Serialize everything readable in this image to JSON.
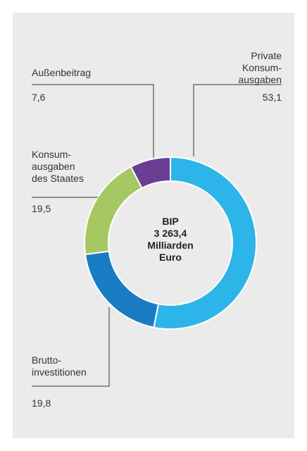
{
  "chart_data": {
    "type": "donut",
    "center_label": "BIP\n3 263,4\nMilliarden\nEuro",
    "categories": [
      "Private\nKonsum-\nausgaben",
      "Brutto-\ninvestitionen",
      "Konsum-\nausgaben\ndes Staates",
      "Außenbeitrag"
    ],
    "values": [
      53.1,
      19.8,
      19.5,
      7.6
    ],
    "value_labels": [
      "53,1",
      "19,8",
      "19,5",
      "7,6"
    ],
    "colors": [
      "#2db4e8",
      "#1a7cc2",
      "#a6c862",
      "#6b3d94"
    ]
  }
}
